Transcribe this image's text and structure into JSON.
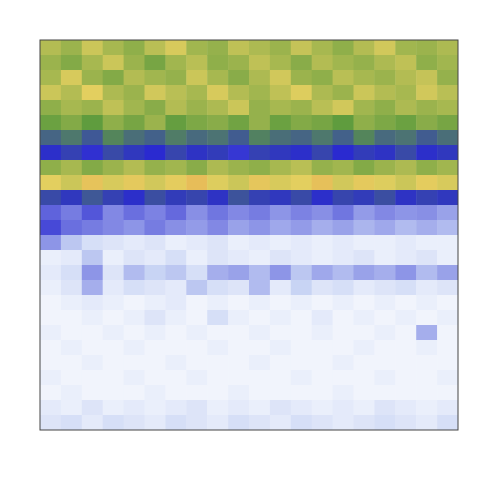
{
  "chart_data": {
    "type": "heatmap",
    "tick_labels": false,
    "zlim": [
      0,
      1
    ],
    "cells": [
      [
        0.74,
        0.7,
        0.78,
        0.72,
        0.68,
        0.75,
        0.8,
        0.71,
        0.69,
        0.76,
        0.73,
        0.7,
        0.77,
        0.72,
        0.68,
        0.74,
        0.79,
        0.71,
        0.7,
        0.73
      ],
      [
        0.7,
        0.66,
        0.72,
        0.78,
        0.7,
        0.64,
        0.71,
        0.75,
        0.68,
        0.7,
        0.76,
        0.72,
        0.67,
        0.74,
        0.71,
        0.69,
        0.73,
        0.76,
        0.68,
        0.71
      ],
      [
        0.72,
        0.8,
        0.7,
        0.66,
        0.74,
        0.71,
        0.69,
        0.78,
        0.72,
        0.67,
        0.73,
        0.79,
        0.7,
        0.68,
        0.75,
        0.72,
        0.7,
        0.74,
        0.77,
        0.69
      ],
      [
        0.78,
        0.74,
        0.82,
        0.73,
        0.7,
        0.79,
        0.75,
        0.72,
        0.8,
        0.74,
        0.71,
        0.76,
        0.81,
        0.73,
        0.7,
        0.78,
        0.74,
        0.72,
        0.79,
        0.75
      ],
      [
        0.68,
        0.72,
        0.7,
        0.76,
        0.71,
        0.67,
        0.74,
        0.7,
        0.73,
        0.78,
        0.69,
        0.72,
        0.7,
        0.75,
        0.79,
        0.71,
        0.68,
        0.73,
        0.7,
        0.72
      ],
      [
        0.62,
        0.66,
        0.6,
        0.68,
        0.64,
        0.7,
        0.61,
        0.65,
        0.67,
        0.63,
        0.69,
        0.62,
        0.66,
        0.64,
        0.6,
        0.68,
        0.65,
        0.62,
        0.67,
        0.64
      ],
      [
        0.48,
        0.52,
        0.45,
        0.55,
        0.5,
        0.47,
        0.53,
        0.49,
        0.51,
        0.46,
        0.54,
        0.5,
        0.48,
        0.52,
        0.47,
        0.55,
        0.49,
        0.51,
        0.46,
        0.5
      ],
      [
        0.36,
        0.4,
        0.34,
        0.42,
        0.38,
        0.35,
        0.41,
        0.37,
        0.39,
        0.33,
        0.4,
        0.38,
        0.36,
        0.41,
        0.35,
        0.39,
        0.37,
        0.42,
        0.36,
        0.38
      ],
      [
        0.68,
        0.72,
        0.66,
        0.7,
        0.74,
        0.69,
        0.71,
        0.67,
        0.73,
        0.7,
        0.68,
        0.72,
        0.75,
        0.69,
        0.71,
        0.66,
        0.7,
        0.73,
        0.68,
        0.71
      ],
      [
        0.82,
        0.78,
        0.86,
        0.8,
        0.84,
        0.79,
        0.83,
        0.88,
        0.81,
        0.78,
        0.85,
        0.8,
        0.82,
        0.87,
        0.79,
        0.84,
        0.81,
        0.78,
        0.83,
        0.8
      ],
      [
        0.42,
        0.38,
        0.45,
        0.4,
        0.36,
        0.43,
        0.39,
        0.41,
        0.37,
        0.44,
        0.4,
        0.38,
        0.42,
        0.36,
        0.41,
        0.39,
        0.43,
        0.37,
        0.4,
        0.38
      ],
      [
        0.26,
        0.22,
        0.28,
        0.2,
        0.24,
        0.21,
        0.25,
        0.19,
        0.23,
        0.2,
        0.22,
        0.18,
        0.21,
        0.19,
        0.23,
        0.17,
        0.2,
        0.18,
        0.19,
        0.16
      ],
      [
        0.3,
        0.24,
        0.22,
        0.2,
        0.18,
        0.22,
        0.19,
        0.17,
        0.2,
        0.16,
        0.18,
        0.15,
        0.17,
        0.14,
        0.16,
        0.13,
        0.15,
        0.12,
        0.14,
        0.12
      ],
      [
        0.18,
        0.1,
        0.06,
        0.05,
        0.04,
        0.05,
        0.03,
        0.04,
        0.05,
        0.03,
        0.04,
        0.03,
        0.04,
        0.03,
        0.04,
        0.03,
        0.03,
        0.04,
        0.03,
        0.03
      ],
      [
        0.03,
        0.04,
        0.1,
        0.03,
        0.05,
        0.04,
        0.06,
        0.03,
        0.05,
        0.04,
        0.03,
        0.05,
        0.04,
        0.03,
        0.04,
        0.05,
        0.03,
        0.04,
        0.05,
        0.03
      ],
      [
        0.04,
        0.06,
        0.18,
        0.05,
        0.12,
        0.08,
        0.1,
        0.06,
        0.14,
        0.16,
        0.12,
        0.18,
        0.1,
        0.15,
        0.12,
        0.16,
        0.14,
        0.18,
        0.12,
        0.16
      ],
      [
        0.03,
        0.05,
        0.14,
        0.04,
        0.06,
        0.05,
        0.04,
        0.1,
        0.06,
        0.05,
        0.12,
        0.04,
        0.08,
        0.05,
        0.06,
        0.04,
        0.05,
        0.06,
        0.04,
        0.05
      ],
      [
        0.02,
        0.03,
        0.04,
        0.03,
        0.02,
        0.03,
        0.04,
        0.02,
        0.03,
        0.02,
        0.03,
        0.02,
        0.03,
        0.02,
        0.03,
        0.02,
        0.03,
        0.02,
        0.03,
        0.02
      ],
      [
        0.02,
        0.02,
        0.03,
        0.02,
        0.03,
        0.05,
        0.03,
        0.02,
        0.06,
        0.03,
        0.02,
        0.03,
        0.02,
        0.04,
        0.02,
        0.03,
        0.02,
        0.03,
        0.02,
        0.03
      ],
      [
        0.03,
        0.02,
        0.02,
        0.03,
        0.02,
        0.03,
        0.02,
        0.03,
        0.02,
        0.02,
        0.03,
        0.02,
        0.02,
        0.03,
        0.02,
        0.02,
        0.03,
        0.02,
        0.14,
        0.02
      ],
      [
        0.02,
        0.03,
        0.02,
        0.02,
        0.03,
        0.02,
        0.02,
        0.02,
        0.03,
        0.02,
        0.02,
        0.03,
        0.02,
        0.02,
        0.02,
        0.03,
        0.02,
        0.02,
        0.03,
        0.02
      ],
      [
        0.02,
        0.02,
        0.03,
        0.02,
        0.02,
        0.02,
        0.03,
        0.02,
        0.02,
        0.02,
        0.03,
        0.02,
        0.02,
        0.02,
        0.03,
        0.02,
        0.02,
        0.02,
        0.02,
        0.02
      ],
      [
        0.03,
        0.02,
        0.02,
        0.02,
        0.03,
        0.02,
        0.02,
        0.03,
        0.02,
        0.02,
        0.02,
        0.02,
        0.03,
        0.02,
        0.02,
        0.02,
        0.03,
        0.02,
        0.02,
        0.03
      ],
      [
        0.02,
        0.03,
        0.02,
        0.02,
        0.02,
        0.03,
        0.02,
        0.02,
        0.02,
        0.03,
        0.02,
        0.02,
        0.02,
        0.02,
        0.03,
        0.02,
        0.02,
        0.02,
        0.02,
        0.02
      ],
      [
        0.04,
        0.03,
        0.05,
        0.03,
        0.04,
        0.03,
        0.04,
        0.05,
        0.03,
        0.04,
        0.03,
        0.05,
        0.04,
        0.03,
        0.04,
        0.03,
        0.05,
        0.04,
        0.03,
        0.04
      ],
      [
        0.05,
        0.06,
        0.04,
        0.06,
        0.05,
        0.04,
        0.06,
        0.05,
        0.04,
        0.06,
        0.05,
        0.04,
        0.06,
        0.05,
        0.04,
        0.05,
        0.06,
        0.05,
        0.04,
        0.06
      ]
    ]
  }
}
